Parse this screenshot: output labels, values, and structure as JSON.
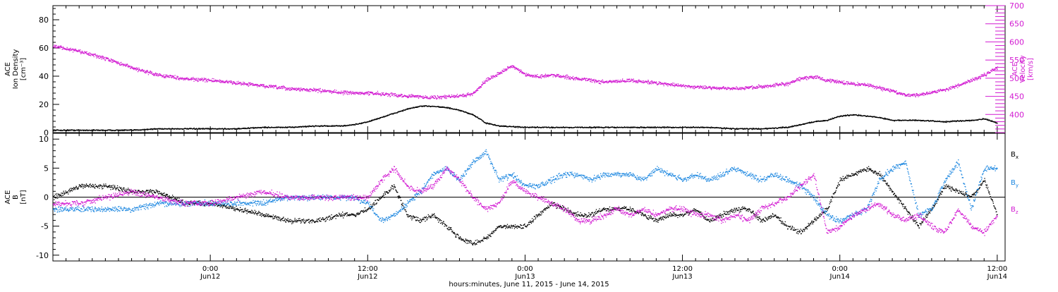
{
  "title": "",
  "xaxis": {
    "caption": "hours:minutes, June 11, 2015 - June 14, 2015",
    "ticks": [
      {
        "t": 12,
        "time": "0:00",
        "date": "Jun12"
      },
      {
        "t": 24,
        "time": "12:00",
        "date": "Jun12"
      },
      {
        "t": 36,
        "time": "0:00",
        "date": "Jun13"
      },
      {
        "t": 48,
        "time": "12:00",
        "date": "Jun13"
      },
      {
        "t": 60,
        "time": "0:00",
        "date": "Jun14"
      },
      {
        "t": 72,
        "time": "12:00",
        "date": "Jun14"
      }
    ]
  },
  "colors": {
    "black": "#000000",
    "magenta": "#d21bd2",
    "blue": "#1a86e0"
  },
  "chart_data": [
    {
      "type": "scatter",
      "panel": "top",
      "x_units": "hours since Jun 11 12:00",
      "xlim": [
        0,
        72.6
      ],
      "left_axis": {
        "label_lines": [
          "ACE",
          "Ion Density",
          "[cm⁻³]"
        ],
        "ylim": [
          0,
          90
        ],
        "ticks": [
          0,
          20,
          40,
          60,
          80
        ]
      },
      "right_axis": {
        "label_lines": [
          "ACE",
          "Velocity",
          "[km/s]"
        ],
        "ylim": [
          350,
          700
        ],
        "ticks": [
          400,
          450,
          500,
          550,
          600,
          650,
          700
        ]
      },
      "series": [
        {
          "axis": "left",
          "color": "black",
          "x": [
            0,
            2,
            4,
            6,
            8,
            10,
            12,
            14,
            16,
            18,
            20,
            22,
            23,
            24,
            25,
            26,
            27,
            28,
            29,
            30,
            31,
            32,
            33,
            34,
            36,
            38,
            40,
            42,
            44,
            46,
            48,
            50,
            52,
            54,
            56,
            57,
            58,
            59,
            60,
            61,
            62,
            63,
            64,
            66,
            68,
            70,
            71,
            72
          ],
          "y": [
            2,
            2,
            2,
            2,
            3,
            3,
            3,
            3,
            4,
            4,
            5,
            5,
            6,
            8,
            11,
            14,
            17,
            19,
            19,
            18,
            16,
            13,
            7,
            5,
            4,
            4,
            4,
            4,
            4,
            4,
            4,
            4,
            3,
            3,
            4,
            6,
            8,
            9,
            12,
            13,
            12,
            11,
            9,
            9,
            8,
            9,
            10,
            7
          ]
        },
        {
          "axis": "right",
          "color": "magenta",
          "x": [
            0,
            2,
            4,
            6,
            8,
            10,
            12,
            14,
            16,
            18,
            20,
            22,
            23,
            24,
            25,
            26,
            27,
            28,
            29,
            30,
            31,
            32,
            33,
            34,
            35,
            36,
            37,
            38,
            40,
            42,
            44,
            46,
            48,
            50,
            52,
            54,
            56,
            57,
            58,
            59,
            60,
            61,
            62,
            63,
            64,
            65,
            66,
            67,
            68,
            69,
            70,
            71,
            72
          ],
          "y": [
            590,
            575,
            555,
            530,
            510,
            500,
            495,
            488,
            480,
            472,
            468,
            462,
            460,
            460,
            458,
            455,
            452,
            450,
            448,
            450,
            452,
            458,
            495,
            515,
            535,
            510,
            505,
            510,
            500,
            490,
            495,
            488,
            480,
            475,
            472,
            478,
            485,
            500,
            505,
            495,
            490,
            485,
            483,
            475,
            465,
            455,
            455,
            462,
            470,
            480,
            495,
            510,
            530
          ]
        }
      ]
    },
    {
      "type": "scatter",
      "panel": "bottom",
      "x_units": "hours since Jun 11 12:00",
      "xlim": [
        0,
        72.6
      ],
      "left_axis": {
        "label_lines": [
          "ACE",
          "B",
          "[nT]"
        ],
        "ylim": [
          -11,
          11
        ],
        "ticks": [
          -10,
          -5,
          0,
          5,
          10
        ]
      },
      "reference_line": 0,
      "legend": [
        "Bx",
        "By",
        "Bz"
      ],
      "series": [
        {
          "name": "Bx",
          "color": "black",
          "x": [
            0,
            2,
            4,
            6,
            8,
            10,
            12,
            14,
            16,
            18,
            20,
            22,
            23,
            24,
            25,
            26,
            27,
            28,
            29,
            30,
            31,
            32,
            33,
            34,
            35,
            36,
            37,
            38,
            39,
            40,
            41,
            42,
            43,
            44,
            45,
            46,
            47,
            48,
            49,
            50,
            51,
            52,
            53,
            54,
            55,
            56,
            57,
            58,
            59,
            60,
            61,
            62,
            63,
            64,
            65,
            66,
            67,
            68,
            69,
            70,
            71,
            72
          ],
          "y": [
            0,
            2,
            2,
            1,
            1,
            -1,
            -1,
            -2,
            -3,
            -4,
            -4,
            -3,
            -3,
            -2,
            0,
            2,
            -3,
            -4,
            -3,
            -5,
            -7,
            -8,
            -7,
            -5,
            -5,
            -5,
            -3,
            -1,
            -2,
            -3,
            -3,
            -2,
            -2,
            -2,
            -3,
            -4,
            -3,
            -3,
            -2,
            -4,
            -3,
            -2,
            -2,
            -4,
            -3,
            -5,
            -6,
            -4,
            -2,
            3,
            4,
            5,
            4,
            1,
            -2,
            -5,
            -2,
            2,
            1,
            0,
            3,
            -3
          ]
        },
        {
          "name": "By",
          "color": "blue",
          "x": [
            0,
            2,
            4,
            6,
            8,
            10,
            12,
            14,
            16,
            18,
            20,
            22,
            23,
            24,
            25,
            26,
            27,
            28,
            29,
            30,
            31,
            32,
            33,
            34,
            35,
            36,
            37,
            38,
            39,
            40,
            41,
            42,
            43,
            44,
            45,
            46,
            47,
            48,
            49,
            50,
            51,
            52,
            53,
            54,
            55,
            56,
            57,
            58,
            59,
            60,
            61,
            62,
            63,
            64,
            65,
            66,
            67,
            68,
            69,
            70,
            71,
            72
          ],
          "y": [
            -2,
            -2,
            -2,
            -2,
            -1,
            -1,
            -1,
            -1,
            -1,
            0,
            0,
            0,
            0,
            -1,
            -4,
            -3,
            -1,
            1,
            4,
            5,
            3,
            6,
            8,
            3,
            4,
            2,
            2,
            3,
            4,
            4,
            3,
            4,
            4,
            4,
            3,
            5,
            4,
            3,
            4,
            3,
            4,
            5,
            4,
            3,
            4,
            3,
            2,
            0,
            -3,
            -4,
            -3,
            -2,
            3,
            5,
            6,
            -3,
            -2,
            3,
            6,
            -2,
            5,
            5
          ]
        },
        {
          "name": "Bz",
          "color": "magenta",
          "x": [
            0,
            2,
            4,
            6,
            8,
            10,
            12,
            14,
            16,
            18,
            20,
            22,
            23,
            24,
            25,
            26,
            27,
            28,
            29,
            30,
            31,
            32,
            33,
            34,
            35,
            36,
            37,
            38,
            39,
            40,
            41,
            42,
            43,
            44,
            45,
            46,
            47,
            48,
            49,
            50,
            51,
            52,
            53,
            54,
            55,
            56,
            57,
            58,
            59,
            60,
            61,
            62,
            63,
            64,
            65,
            66,
            67,
            68,
            69,
            70,
            71,
            72
          ],
          "y": [
            -1,
            -1,
            0,
            1,
            0,
            -1,
            -1,
            0,
            1,
            0,
            0,
            0,
            0,
            0,
            3,
            5,
            2,
            1,
            2,
            5,
            3,
            0,
            -2,
            -1,
            3,
            1,
            0,
            -1,
            -2,
            -4,
            -4,
            -3,
            -2,
            -3,
            -2,
            -3,
            -2,
            -2,
            -3,
            -3,
            -4,
            -3,
            -4,
            -2,
            -1,
            0,
            2,
            4,
            -6,
            -5,
            -3,
            -2,
            -1,
            -3,
            -4,
            -3,
            -5,
            -6,
            -2,
            -5,
            -6,
            -3
          ]
        }
      ]
    }
  ]
}
